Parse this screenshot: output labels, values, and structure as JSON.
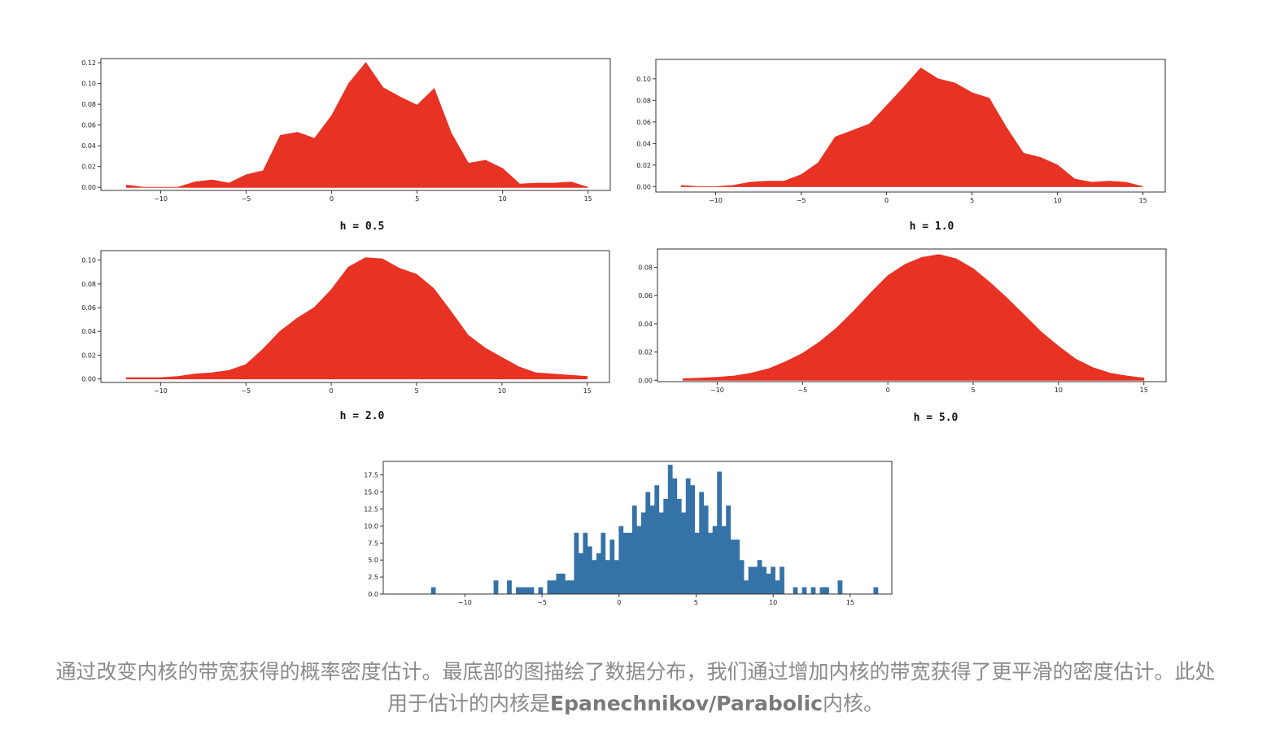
{
  "caption": {
    "part1": "通过改变内核的带宽获得的概率密度估计。最底部的图描绘了数据分布，我们通过增加内核的带宽获得了更平滑的密度估计。此处用于估计的内核是",
    "bold": "Epanechnikov/Parabolic",
    "part2": "内核。"
  },
  "colors": {
    "kde_fill": "#e83224",
    "hist_fill": "#3572a8"
  },
  "chart_data": [
    {
      "type": "area",
      "title": "h = 0.5",
      "x": [
        -12,
        -11,
        -10,
        -9,
        -8,
        -7,
        -6,
        -5,
        -4,
        -3,
        -2,
        -1,
        0,
        1,
        2,
        3,
        4,
        5,
        6,
        7,
        8,
        9,
        10,
        11,
        12,
        13,
        14,
        15
      ],
      "values": [
        0.002,
        0.0,
        0.0,
        0.0,
        0.005,
        0.007,
        0.004,
        0.012,
        0.016,
        0.05,
        0.053,
        0.047,
        0.069,
        0.1,
        0.12,
        0.096,
        0.087,
        0.079,
        0.095,
        0.052,
        0.023,
        0.026,
        0.018,
        0.003,
        0.004,
        0.004,
        0.005,
        0.0
      ],
      "xlim": [
        -13.5,
        16.3
      ],
      "ylim": [
        -0.003,
        0.124
      ],
      "xticks": [
        -10,
        -5,
        0,
        5,
        10,
        15
      ],
      "yticks": [
        0.0,
        0.02,
        0.04,
        0.06,
        0.08,
        0.1,
        0.12
      ],
      "ytick_labels": [
        "0.00",
        "0.02",
        "0.04",
        "0.06",
        "0.08",
        "0.10",
        "0.12"
      ]
    },
    {
      "type": "area",
      "title": "h = 1.0",
      "x": [
        -12,
        -11,
        -10,
        -9,
        -8,
        -7,
        -6,
        -5,
        -4,
        -3,
        -2,
        -1,
        0,
        1,
        2,
        3,
        4,
        5,
        6,
        7,
        8,
        9,
        10,
        11,
        12,
        13,
        14,
        15
      ],
      "values": [
        0.001,
        0.0,
        0.0,
        0.001,
        0.004,
        0.005,
        0.005,
        0.011,
        0.022,
        0.046,
        0.052,
        0.058,
        0.075,
        0.092,
        0.11,
        0.1,
        0.096,
        0.087,
        0.082,
        0.055,
        0.031,
        0.027,
        0.02,
        0.007,
        0.004,
        0.005,
        0.004,
        0.0
      ],
      "xlim": [
        -13.5,
        16.3
      ],
      "ylim": [
        -0.005,
        0.118
      ],
      "xticks": [
        -10,
        -5,
        0,
        5,
        10,
        15
      ],
      "yticks": [
        0.0,
        0.02,
        0.04,
        0.06,
        0.08,
        0.1
      ],
      "ytick_labels": [
        "0.00",
        "0.02",
        "0.04",
        "0.06",
        "0.08",
        "0.10"
      ]
    },
    {
      "type": "area",
      "title": "h = 2.0",
      "x": [
        -12,
        -11,
        -10,
        -9,
        -8,
        -7,
        -6,
        -5,
        -4,
        -3,
        -2,
        -1,
        0,
        1,
        2,
        3,
        4,
        5,
        6,
        7,
        8,
        9,
        10,
        11,
        12,
        13,
        14,
        15
      ],
      "values": [
        0.001,
        0.001,
        0.001,
        0.002,
        0.004,
        0.005,
        0.007,
        0.012,
        0.025,
        0.04,
        0.051,
        0.06,
        0.075,
        0.094,
        0.102,
        0.101,
        0.093,
        0.088,
        0.076,
        0.057,
        0.037,
        0.026,
        0.018,
        0.01,
        0.005,
        0.004,
        0.003,
        0.002
      ],
      "xlim": [
        -13.5,
        16.3
      ],
      "ylim": [
        -0.003,
        0.108
      ],
      "xticks": [
        -10,
        -5,
        0,
        5,
        10,
        15
      ],
      "yticks": [
        0.0,
        0.02,
        0.04,
        0.06,
        0.08,
        0.1
      ],
      "ytick_labels": [
        "0.00",
        "0.02",
        "0.04",
        "0.06",
        "0.08",
        "0.10"
      ]
    },
    {
      "type": "area",
      "title": "h = 5.0",
      "x": [
        -12,
        -11,
        -10,
        -9,
        -8,
        -7,
        -6,
        -5,
        -4,
        -3,
        -2,
        -1,
        0,
        1,
        2,
        3,
        4,
        5,
        6,
        7,
        8,
        9,
        10,
        11,
        12,
        13,
        14,
        15
      ],
      "values": [
        0.001,
        0.0015,
        0.002,
        0.003,
        0.005,
        0.008,
        0.013,
        0.019,
        0.027,
        0.037,
        0.049,
        0.062,
        0.074,
        0.082,
        0.087,
        0.089,
        0.086,
        0.079,
        0.069,
        0.058,
        0.046,
        0.034,
        0.024,
        0.015,
        0.009,
        0.005,
        0.003,
        0.0015
      ],
      "xlim": [
        -13.5,
        16.3
      ],
      "ylim": [
        -0.001,
        0.093
      ],
      "xticks": [
        -10,
        -5,
        0,
        5,
        10,
        15
      ],
      "yticks": [
        0.0,
        0.02,
        0.04,
        0.06,
        0.08
      ],
      "ytick_labels": [
        "0.00",
        "0.02",
        "0.04",
        "0.06",
        "0.08"
      ]
    },
    {
      "type": "bar",
      "bin_start": -12.2,
      "bin_width": 0.29,
      "values": [
        1,
        0,
        0,
        0,
        0,
        0,
        0,
        0,
        0,
        0,
        0,
        0,
        0,
        0,
        2,
        0,
        0,
        2,
        0,
        1,
        1,
        1,
        1,
        0,
        1,
        0,
        2,
        2,
        3,
        3,
        2,
        2,
        9,
        6,
        9,
        7,
        5,
        6,
        9,
        5,
        8,
        5,
        10,
        9,
        9,
        13,
        10,
        12,
        15,
        13,
        16,
        12,
        14,
        19,
        17,
        14,
        12,
        17,
        16,
        9,
        15,
        13,
        9,
        10,
        18,
        10,
        13,
        8,
        8,
        5,
        2,
        4,
        4,
        5,
        4,
        3,
        4,
        2,
        4,
        0,
        0,
        1,
        0,
        1,
        0,
        1,
        0,
        1,
        1,
        0,
        0,
        2,
        0,
        0,
        0,
        0,
        0,
        0,
        0,
        1
      ],
      "xlim": [
        -15.3,
        17.7
      ],
      "ylim": [
        0,
        19.5
      ],
      "xticks": [
        -10,
        -5,
        0,
        5,
        10,
        15
      ],
      "yticks": [
        0.0,
        2.5,
        5.0,
        7.5,
        10.0,
        12.5,
        15.0,
        17.5
      ],
      "ytick_labels": [
        "0.0",
        "2.5",
        "5.0",
        "7.5",
        "10.0",
        "12.5",
        "15.0",
        "17.5"
      ]
    }
  ]
}
